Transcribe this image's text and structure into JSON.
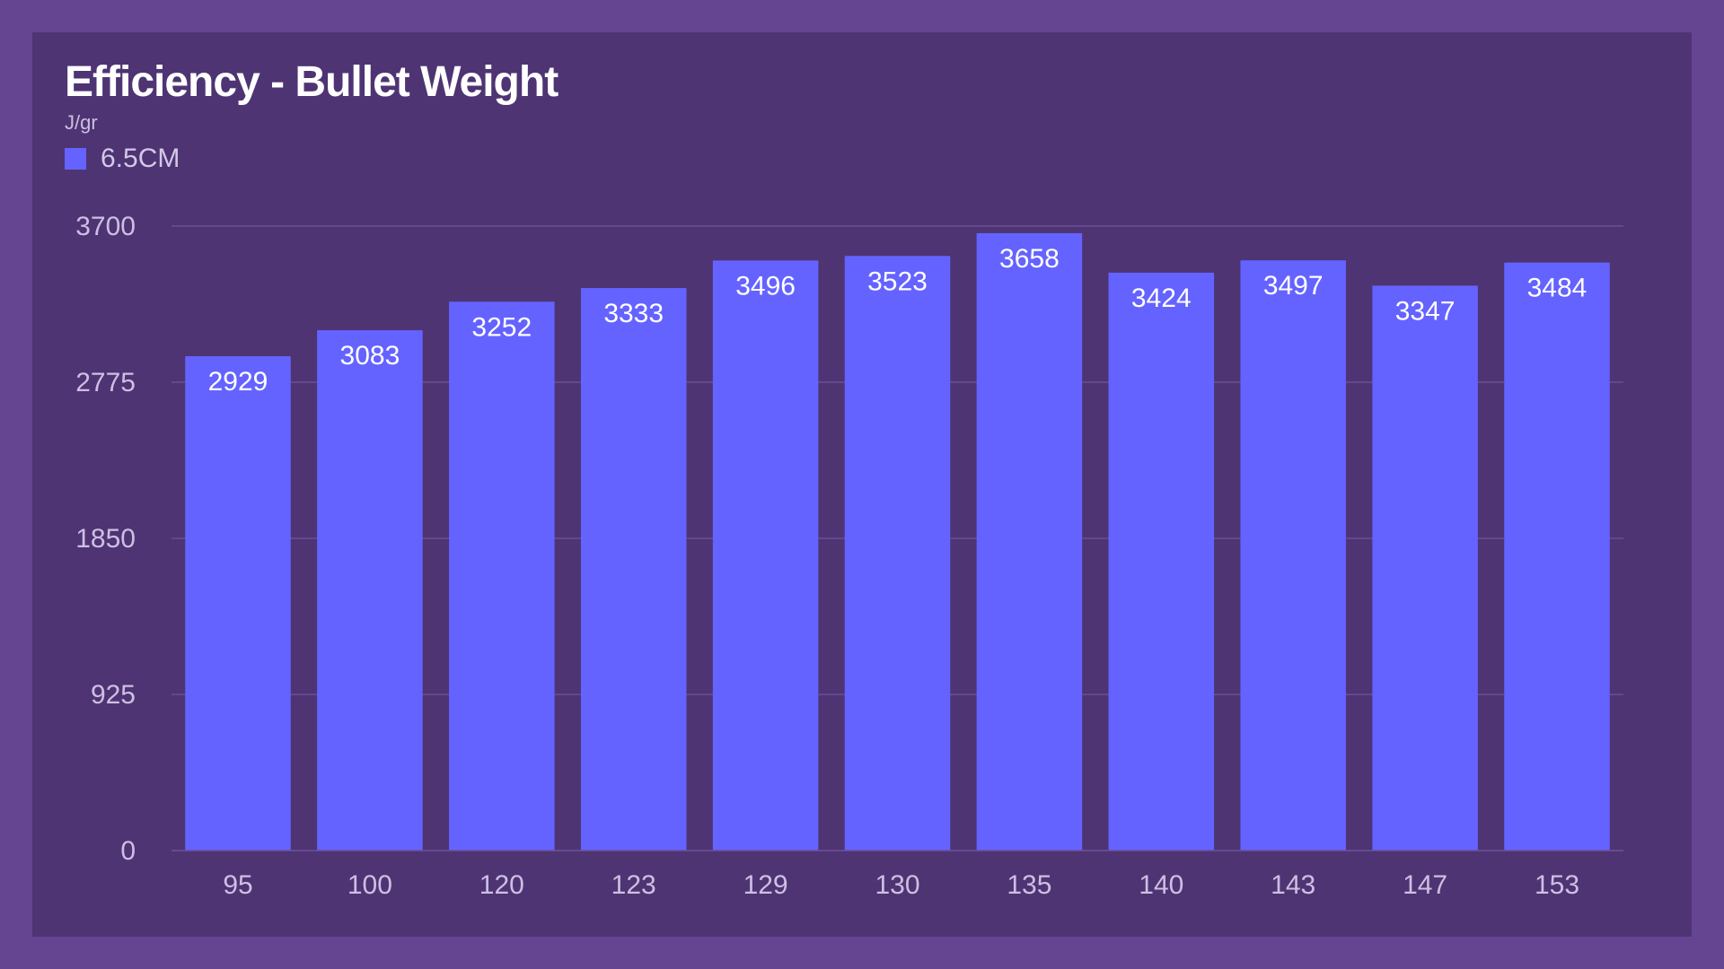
{
  "colors": {
    "page_background": "#654592",
    "panel_background": "#4e3473",
    "bar": "#6563ff",
    "gridline": "#6a4f96",
    "axis_text": "#cdbfe3"
  },
  "chart_data": {
    "type": "bar",
    "title": "Efficiency - Bullet Weight",
    "subtitle": "J/gr",
    "xlabel": "",
    "ylabel": "J/gr",
    "categories": [
      "95",
      "100",
      "120",
      "123",
      "129",
      "130",
      "135",
      "140",
      "143",
      "147",
      "153"
    ],
    "series": [
      {
        "name": "6.5CM",
        "color": "#6563ff",
        "values": [
          2929,
          3083,
          3252,
          3333,
          3496,
          3523,
          3658,
          3424,
          3497,
          3347,
          3484
        ]
      }
    ],
    "ylim": [
      0,
      3700
    ],
    "yticks": [
      0,
      925,
      1850,
      2775,
      3700
    ],
    "grid": true,
    "legend": "top-left",
    "data_labels": true
  }
}
